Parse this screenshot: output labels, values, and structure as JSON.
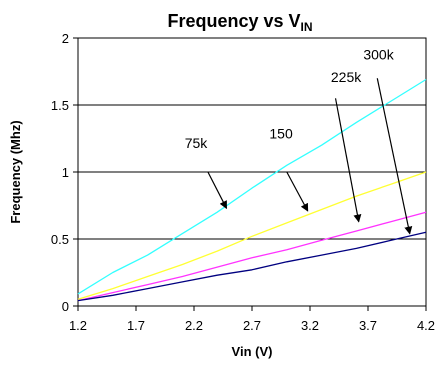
{
  "chart_data": {
    "type": "line",
    "title": "Frequency vs V",
    "title_subscript": "IN",
    "xlabel": "Vin (V)",
    "ylabel": "Frequency (Mhz)",
    "xlim": [
      1.2,
      4.2
    ],
    "ylim": [
      0,
      2
    ],
    "x_ticks": [
      "1.2",
      "1.7",
      "2.2",
      "2.7",
      "3.2",
      "3.7",
      "4.2"
    ],
    "y_ticks": [
      "0",
      "0.5",
      "1",
      "1.5",
      "2"
    ],
    "grid": "horizontal",
    "series": [
      {
        "name": "75k",
        "color": "#33ffff",
        "x": [
          1.2,
          1.5,
          1.8,
          2.1,
          2.4,
          2.7,
          3.0,
          3.3,
          3.6,
          3.9,
          4.2
        ],
        "y": [
          0.09,
          0.25,
          0.38,
          0.54,
          0.7,
          0.88,
          1.05,
          1.2,
          1.37,
          1.53,
          1.69
        ]
      },
      {
        "name": "150",
        "color": "#ffff33",
        "x": [
          1.2,
          1.5,
          1.8,
          2.1,
          2.4,
          2.7,
          3.0,
          3.3,
          3.6,
          3.9,
          4.2
        ],
        "y": [
          0.05,
          0.13,
          0.22,
          0.31,
          0.41,
          0.52,
          0.62,
          0.72,
          0.82,
          0.91,
          1.0
        ]
      },
      {
        "name": "225k",
        "color": "#ff33ff",
        "x": [
          1.2,
          1.5,
          1.8,
          2.1,
          2.4,
          2.7,
          3.0,
          3.3,
          3.6,
          3.9,
          4.2
        ],
        "y": [
          0.04,
          0.1,
          0.16,
          0.22,
          0.29,
          0.36,
          0.42,
          0.49,
          0.56,
          0.63,
          0.7
        ]
      },
      {
        "name": "300k",
        "color": "#000080",
        "x": [
          1.2,
          1.5,
          1.8,
          2.1,
          2.4,
          2.7,
          3.0,
          3.3,
          3.6,
          3.9,
          4.2
        ],
        "y": [
          0.04,
          0.08,
          0.13,
          0.18,
          0.23,
          0.27,
          0.33,
          0.38,
          0.43,
          0.49,
          0.55
        ]
      }
    ],
    "annotations": [
      {
        "text": "75k",
        "label_at": [
          2.12,
          1.18
        ],
        "arrow_from": [
          2.32,
          1.0
        ],
        "arrow_to": [
          2.48,
          0.73
        ]
      },
      {
        "text": "150",
        "label_at": [
          2.85,
          1.25
        ],
        "arrow_from": [
          3.0,
          1.0
        ],
        "arrow_to": [
          3.18,
          0.71
        ]
      },
      {
        "text": "225k",
        "label_at": [
          3.38,
          1.67
        ],
        "arrow_from": [
          3.42,
          1.55
        ],
        "arrow_to": [
          3.62,
          0.63
        ]
      },
      {
        "text": "300k",
        "label_at": [
          3.66,
          1.84
        ],
        "arrow_from": [
          3.78,
          1.7
        ],
        "arrow_to": [
          4.06,
          0.54
        ]
      }
    ]
  }
}
